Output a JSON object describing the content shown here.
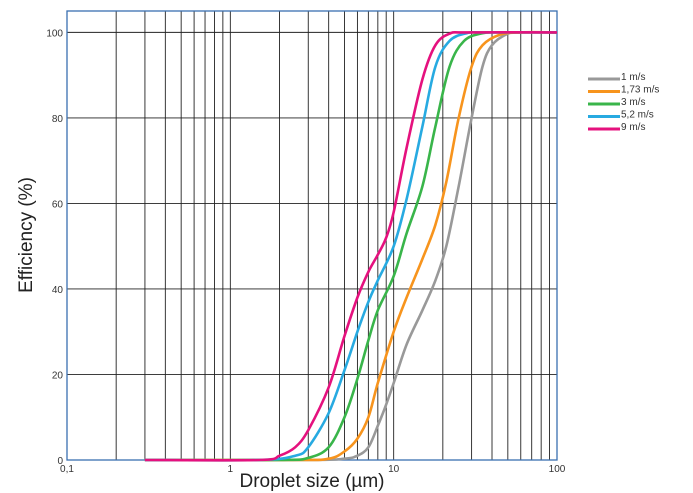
{
  "chart_data": {
    "type": "line",
    "xscale": "log",
    "xlim": [
      0.1,
      100
    ],
    "ylim": [
      0,
      105
    ],
    "grid": true,
    "legend_position": "right",
    "xlabel": "Droplet size (µm)",
    "ylabel": "Efficiency (%)",
    "x_tick_labels": [
      {
        "value": 0.1,
        "label": "0,1"
      },
      {
        "value": 1,
        "label": "1"
      },
      {
        "value": 10,
        "label": "10"
      },
      {
        "value": 100,
        "label": "100"
      }
    ],
    "y_tick_labels": [
      {
        "value": 0,
        "label": "0"
      },
      {
        "value": 20,
        "label": "20"
      },
      {
        "value": 40,
        "label": "40"
      },
      {
        "value": 60,
        "label": "60"
      },
      {
        "value": 80,
        "label": "80"
      },
      {
        "value": 100,
        "label": "100"
      }
    ],
    "series": [
      {
        "name": "1 m/s",
        "color": "#999999",
        "x": [
          0.3,
          3,
          5,
          6,
          7,
          8,
          9,
          10,
          12,
          15,
          18,
          21,
          25,
          30,
          35,
          40,
          50,
          60,
          100
        ],
        "y": [
          0,
          0,
          0.3,
          1,
          3,
          8,
          13,
          18,
          27,
          35,
          42,
          50,
          64,
          80,
          92,
          97,
          99.7,
          100,
          100
        ]
      },
      {
        "name": "1,73 m/s",
        "color": "#f7941d",
        "x": [
          0.3,
          2.5,
          4,
          5,
          6,
          7,
          8,
          10,
          12,
          15,
          18,
          21,
          25,
          30,
          35,
          45,
          60,
          100
        ],
        "y": [
          0,
          0,
          0.3,
          2,
          5,
          10,
          18,
          30,
          38,
          47,
          55,
          65,
          80,
          92,
          97,
          99.5,
          100,
          100
        ]
      },
      {
        "name": "3 m/s",
        "color": "#39b54a",
        "x": [
          0.3,
          2,
          3,
          4,
          5,
          6,
          7,
          8,
          10,
          12,
          15,
          18,
          22,
          27,
          35,
          45,
          100
        ],
        "y": [
          0,
          0,
          0.5,
          3,
          10,
          19,
          28,
          35,
          43,
          53,
          64,
          78,
          92,
          98,
          99.8,
          100,
          100
        ]
      },
      {
        "name": "5,2 m/s",
        "color": "#27aae1",
        "x": [
          0.3,
          1.5,
          2.5,
          3,
          4,
          5,
          6,
          7,
          8,
          10,
          12,
          15,
          18,
          22,
          28,
          35,
          100
        ],
        "y": [
          0,
          0,
          1,
          3,
          11,
          21,
          30,
          37,
          42,
          50,
          61,
          78,
          92,
          98,
          99.8,
          100,
          100
        ]
      },
      {
        "name": "9 m/s",
        "color": "#e5117e",
        "x": [
          0.3,
          1.5,
          2,
          2.5,
          3,
          4,
          5,
          6,
          7,
          8,
          9,
          10,
          12,
          15,
          18,
          22,
          28,
          100
        ],
        "y": [
          0,
          0,
          1,
          3,
          7,
          17,
          29,
          38,
          44,
          48,
          52,
          58,
          73,
          89,
          97,
          99.7,
          100,
          100
        ]
      }
    ]
  }
}
